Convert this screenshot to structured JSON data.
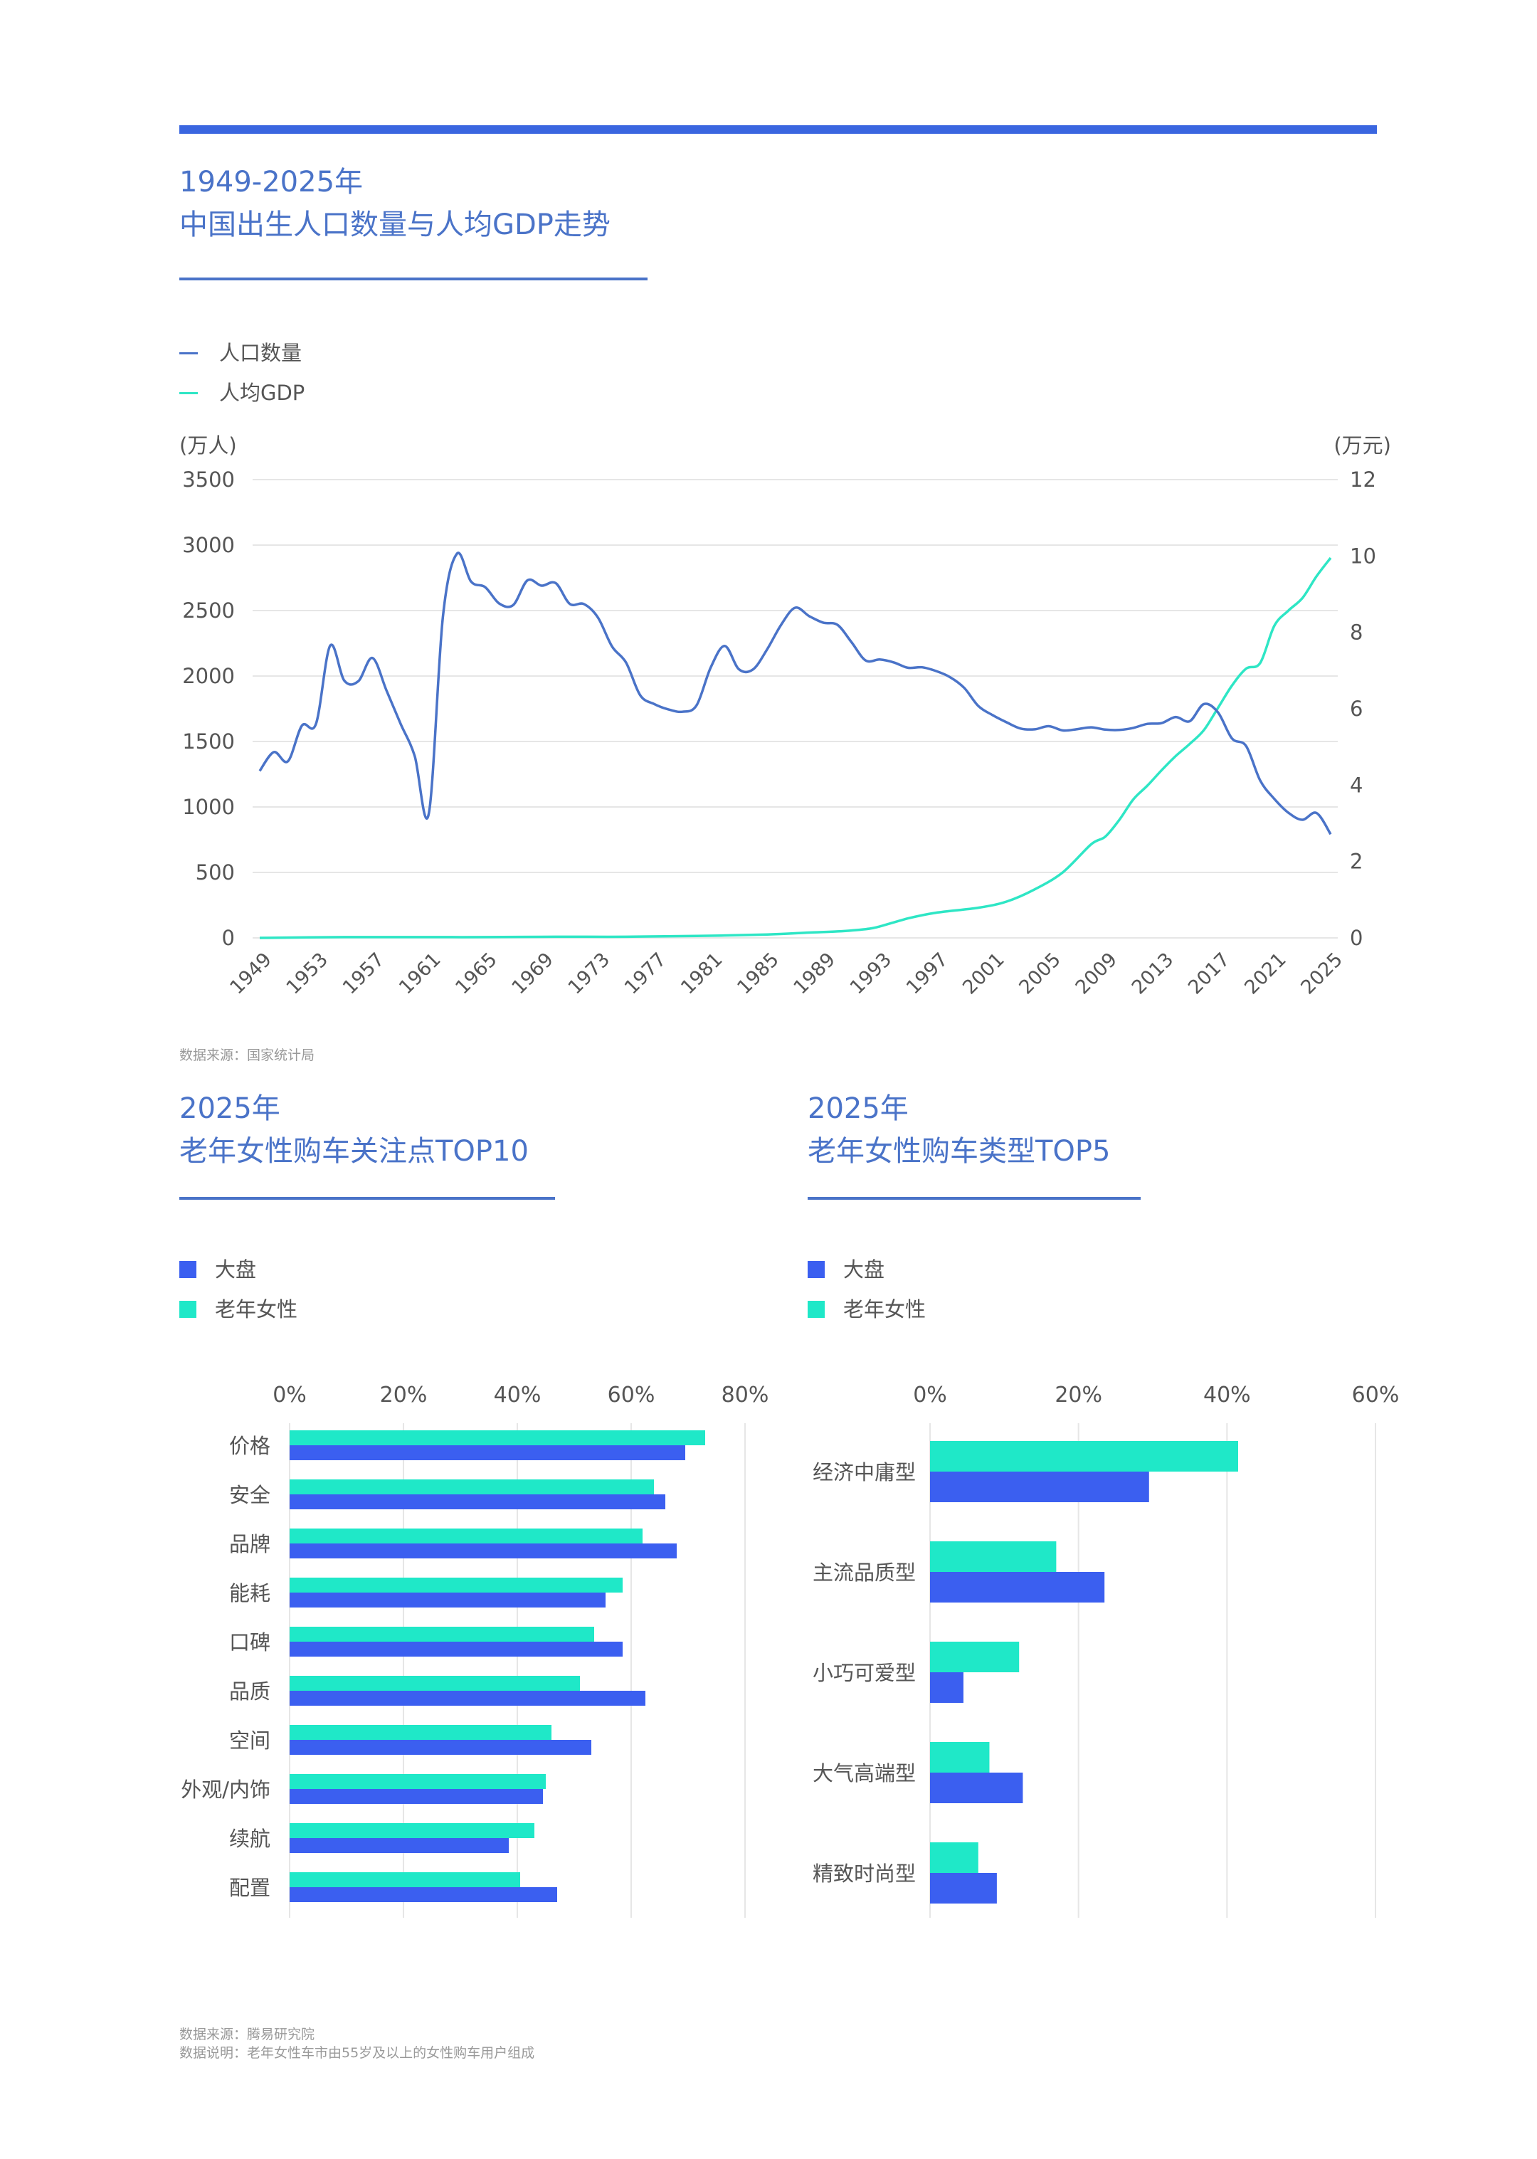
{
  "header": {
    "line_chart_title_1": "1949-2025年",
    "line_chart_title_2": "中国出生人口数量与人均GDP走势"
  },
  "line_chart_source": "数据来源：国家统计局",
  "bar1": {
    "title_1": "2025年",
    "title_2": "老年女性购车关注点TOP10"
  },
  "bar2": {
    "title_1": "2025年",
    "title_2": "老年女性购车类型TOP5"
  },
  "footer": {
    "source": "数据来源：腾易研究院",
    "note": "数据说明：老年女性车市由55岁及以上的女性购车用户组成"
  },
  "colors": {
    "population": "#4a73c8",
    "gdp": "#2ee6c5",
    "dapan": "#3b5ff0",
    "women": "#1fe8c8"
  },
  "chart_data": [
    {
      "type": "line",
      "legend": [
        "人口数量",
        "人均GDP"
      ],
      "y_left_unit": "(万人)",
      "y_right_unit": "(万元)",
      "y_left_ticks": [
        0,
        500,
        1000,
        1500,
        2000,
        2500,
        3000,
        3500
      ],
      "y_right_ticks": [
        0,
        2,
        4,
        6,
        8,
        10,
        12
      ],
      "ylim_left": [
        0,
        3500
      ],
      "ylim_right": [
        0,
        12
      ],
      "x_ticks": [
        "1949",
        "1953",
        "1957",
        "1961",
        "1965",
        "1969",
        "1973",
        "1977",
        "1981",
        "1985",
        "1989",
        "1993",
        "1997",
        "2001",
        "2005",
        "2009",
        "2013",
        "2017",
        "2021",
        "2025"
      ],
      "series": [
        {
          "name": "人口数量",
          "axis": "left",
          "x": [
            1949,
            1950,
            1951,
            1952,
            1953,
            1954,
            1955,
            1956,
            1957,
            1958,
            1959,
            1960,
            1961,
            1962,
            1963,
            1964,
            1965,
            1966,
            1967,
            1968,
            1969,
            1970,
            1971,
            1972,
            1973,
            1974,
            1975,
            1976,
            1977,
            1978,
            1979,
            1980,
            1981,
            1982,
            1983,
            1984,
            1985,
            1986,
            1987,
            1988,
            1989,
            1990,
            1991,
            1992,
            1993,
            1994,
            1995,
            1996,
            1997,
            1998,
            1999,
            2000,
            2001,
            2002,
            2003,
            2004,
            2005,
            2006,
            2007,
            2008,
            2009,
            2010,
            2011,
            2012,
            2013,
            2014,
            2015,
            2016,
            2017,
            2018,
            2019,
            2020,
            2021,
            2022,
            2023,
            2024,
            2025
          ],
          "values": [
            1275,
            1419,
            1349,
            1622,
            1637,
            2232,
            1965,
            1961,
            2138,
            1889,
            1635,
            1389,
            949,
            2451,
            2934,
            2721,
            2679,
            2554,
            2543,
            2731,
            2690,
            2710,
            2551,
            2550,
            2447,
            2226,
            2102,
            1853,
            1786,
            1745,
            1727,
            1776,
            2064,
            2230,
            2052,
            2050,
            2202,
            2391,
            2522,
            2457,
            2407,
            2391,
            2258,
            2119,
            2126,
            2104,
            2063,
            2067,
            2038,
            1991,
            1909,
            1771,
            1702,
            1647,
            1599,
            1593,
            1617,
            1584,
            1594,
            1608,
            1591,
            1588,
            1604,
            1635,
            1640,
            1687,
            1655,
            1786,
            1723,
            1523,
            1465,
            1202,
            1062,
            956,
            902,
            954,
            792
          ]
        },
        {
          "name": "人均GDP",
          "axis": "right",
          "x": [
            1949,
            1955,
            1960,
            1965,
            1970,
            1975,
            1980,
            1985,
            1988,
            1990,
            1992,
            1993,
            1995,
            1997,
            2000,
            2002,
            2004,
            2006,
            2008,
            2009,
            2010,
            2011,
            2012,
            2013,
            2014,
            2015,
            2016,
            2017,
            2018,
            2019,
            2020,
            2021,
            2022,
            2023,
            2024,
            2025
          ],
          "values": [
            0.0,
            0.02,
            0.02,
            0.02,
            0.03,
            0.03,
            0.05,
            0.09,
            0.14,
            0.17,
            0.23,
            0.3,
            0.51,
            0.66,
            0.79,
            0.95,
            1.27,
            1.72,
            2.45,
            2.65,
            3.09,
            3.63,
            3.99,
            4.39,
            4.76,
            5.08,
            5.44,
            6.02,
            6.61,
            7.05,
            7.2,
            8.17,
            8.57,
            8.9,
            9.47,
            9.95
          ]
        }
      ]
    },
    {
      "type": "bar",
      "orientation": "horizontal",
      "categories": [
        "价格",
        "安全",
        "品牌",
        "能耗",
        "口碑",
        "品质",
        "空间",
        "外观/内饰",
        "续航",
        "配置"
      ],
      "x_ticks": [
        "0%",
        "20%",
        "40%",
        "60%",
        "80%"
      ],
      "xlim": [
        0,
        80
      ],
      "series": [
        {
          "name": "老年女性",
          "values": [
            73,
            64,
            62,
            58.5,
            53.5,
            51,
            46,
            45,
            43,
            40.5
          ]
        },
        {
          "name": "大盘",
          "values": [
            69.5,
            66,
            68,
            55.5,
            58.5,
            62.5,
            53,
            44.5,
            38.5,
            47
          ]
        }
      ]
    },
    {
      "type": "bar",
      "orientation": "horizontal",
      "categories": [
        "经济中庸型",
        "主流品质型",
        "小巧可爱型",
        "大气高端型",
        "精致时尚型"
      ],
      "x_ticks": [
        "0%",
        "20%",
        "40%",
        "60%"
      ],
      "xlim": [
        0,
        60
      ],
      "series": [
        {
          "name": "老年女性",
          "values": [
            41.5,
            17,
            12,
            8,
            6.5
          ]
        },
        {
          "name": "大盘",
          "values": [
            29.5,
            23.5,
            4.5,
            12.5,
            9
          ]
        }
      ]
    }
  ]
}
